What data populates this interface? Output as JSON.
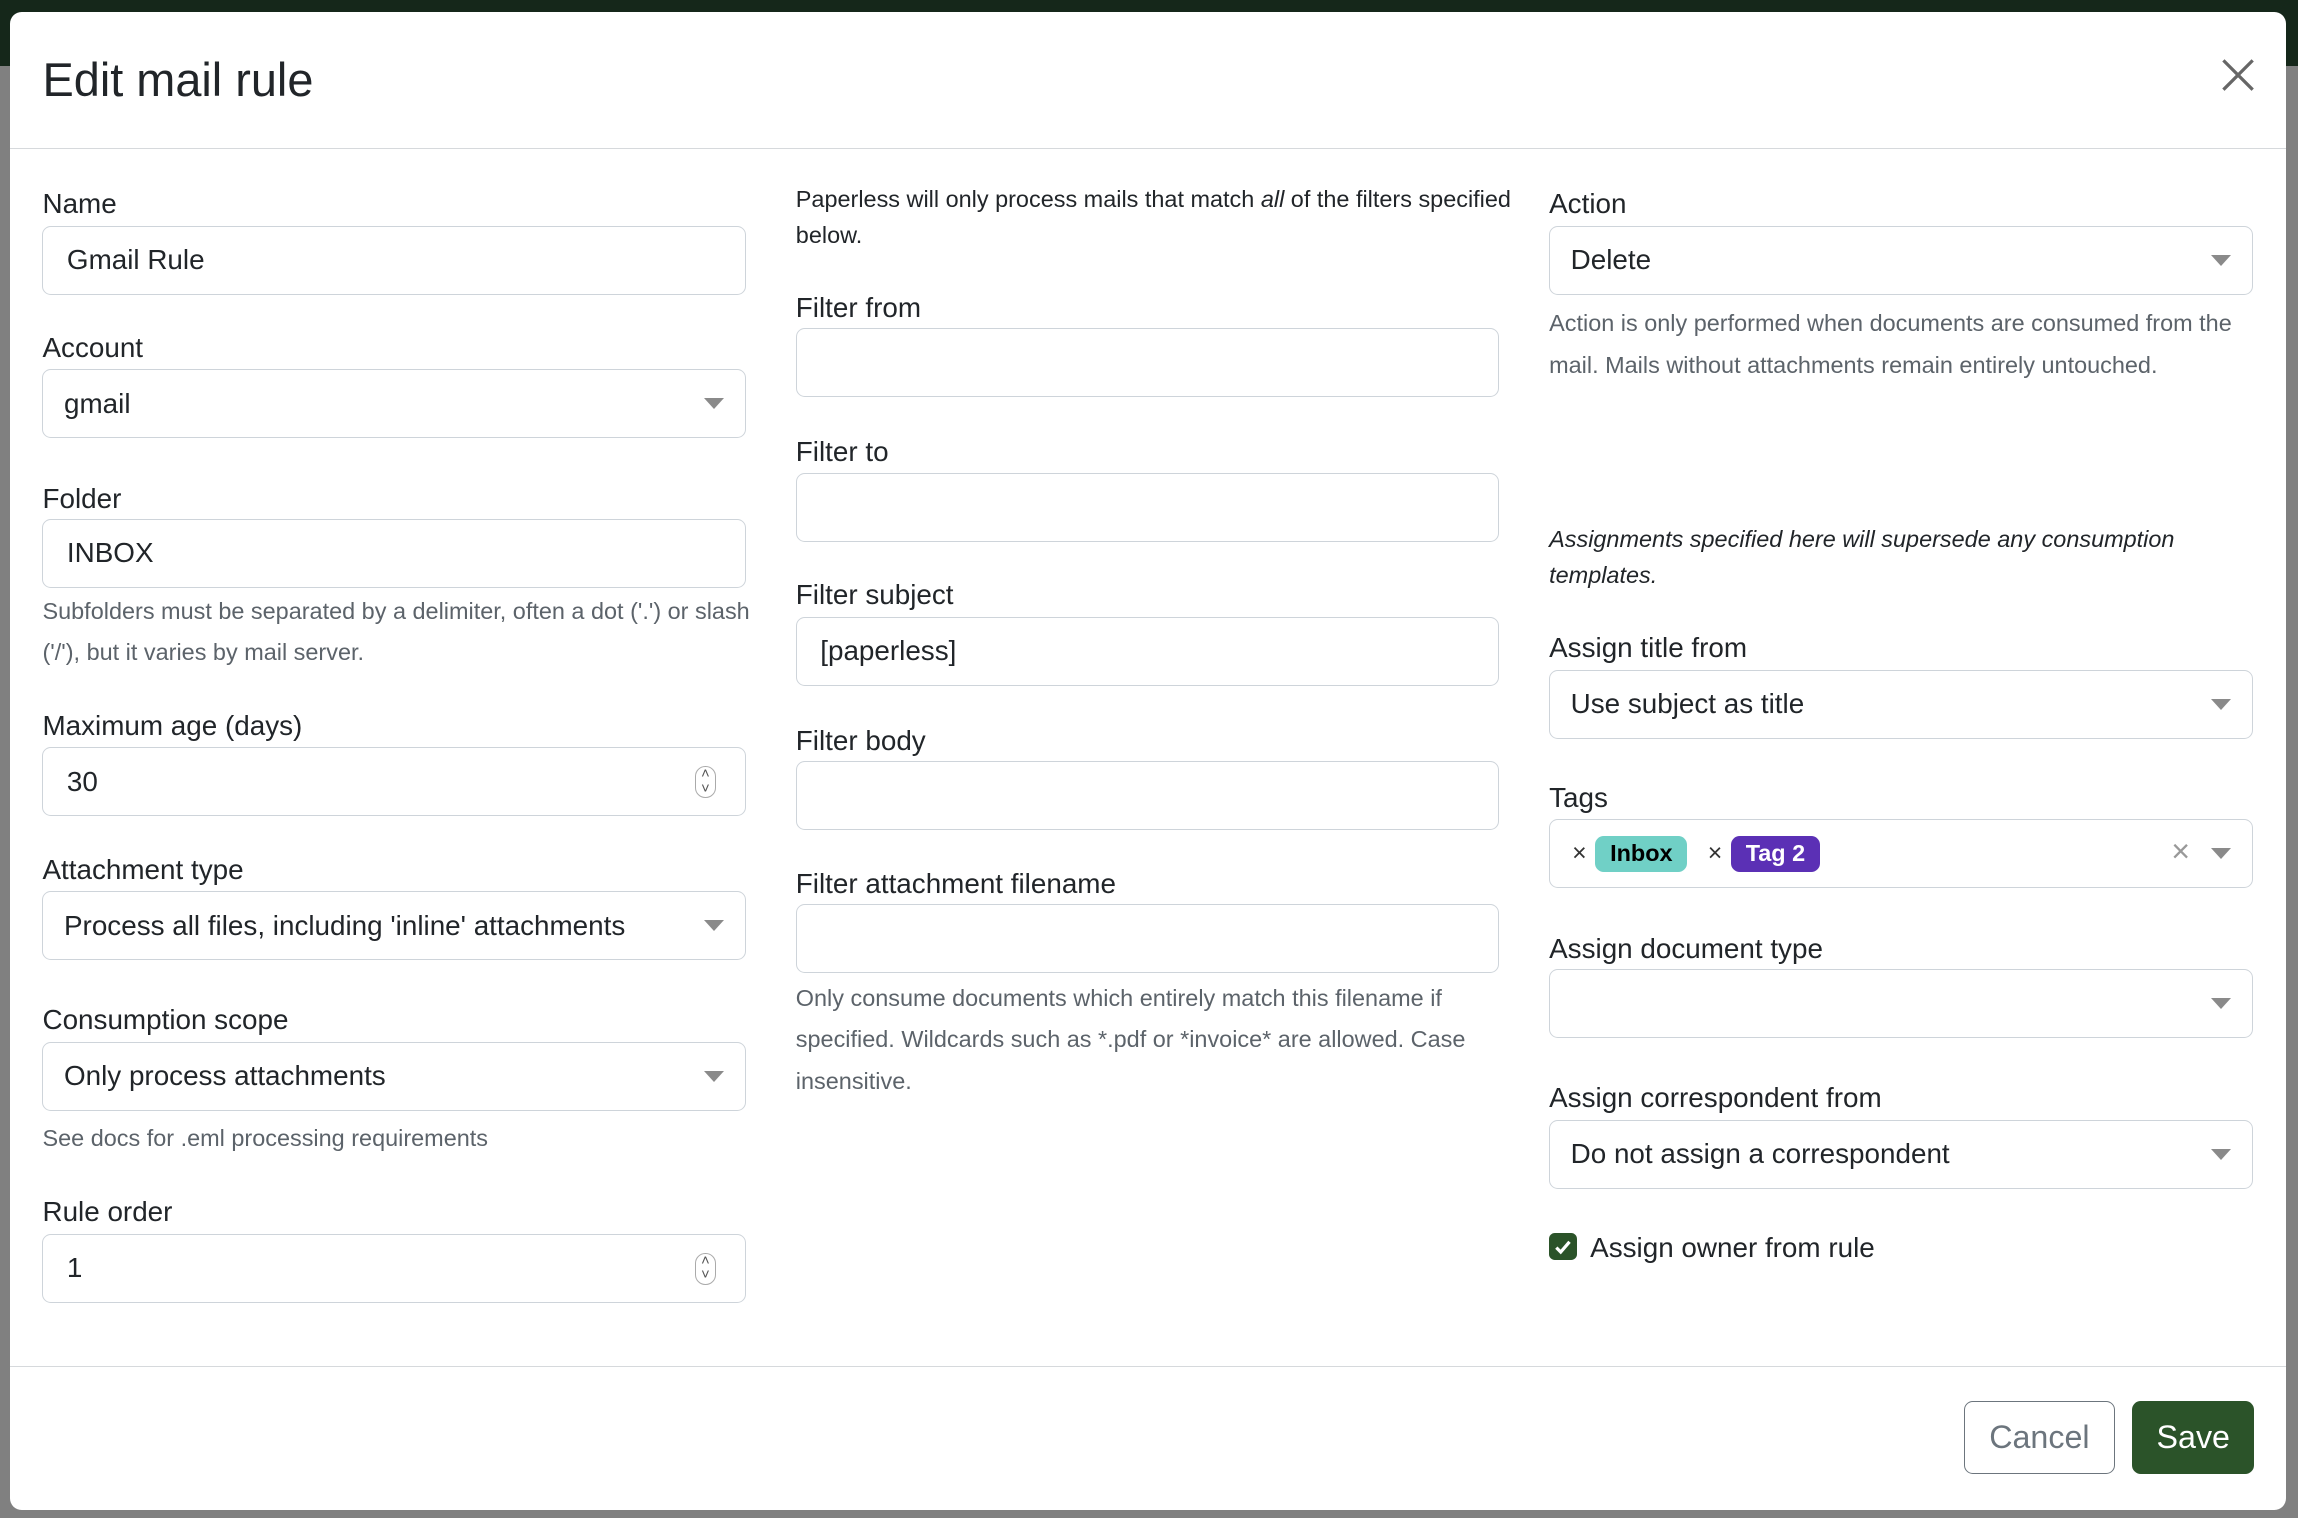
{
  "modal": {
    "title": "Edit mail rule"
  },
  "left": {
    "name": {
      "label": "Name",
      "value": "Gmail Rule"
    },
    "account": {
      "label": "Account",
      "value": "gmail"
    },
    "folder": {
      "label": "Folder",
      "value": "INBOX",
      "help": "Subfolders must be separated by a delimiter, often a dot ('.') or slash ('/'), but it varies by mail server."
    },
    "max_age": {
      "label": "Maximum age (days)",
      "value": "30"
    },
    "attachment_type": {
      "label": "Attachment type",
      "value": "Process all files, including 'inline' attachments"
    },
    "consumption_scope": {
      "label": "Consumption scope",
      "value": "Only process attachments",
      "help": "See docs for .eml processing requirements"
    },
    "rule_order": {
      "label": "Rule order",
      "value": "1"
    }
  },
  "middle": {
    "intro_a": "Paperless will only process mails that match ",
    "intro_em": "all",
    "intro_b": " of the filters specified below.",
    "filter_from": {
      "label": "Filter from",
      "value": ""
    },
    "filter_to": {
      "label": "Filter to",
      "value": ""
    },
    "filter_subject": {
      "label": "Filter subject",
      "value": "[paperless]"
    },
    "filter_body": {
      "label": "Filter body",
      "value": ""
    },
    "filter_attachment": {
      "label": "Filter attachment filename",
      "value": "",
      "help": "Only consume documents which entirely match this filename if specified. Wildcards such as *.pdf or *invoice* are allowed. Case insensitive."
    }
  },
  "right": {
    "action": {
      "label": "Action",
      "value": "Delete",
      "help": "Action is only performed when documents are consumed from the mail. Mails without attachments remain entirely untouched."
    },
    "note": "Assignments specified here will supersede any consumption templates.",
    "assign_title": {
      "label": "Assign title from",
      "value": "Use subject as title"
    },
    "tags": {
      "label": "Tags",
      "items": [
        {
          "label": "Inbox",
          "color": "#70d0c6",
          "text_color": "#000000"
        },
        {
          "label": "Tag 2",
          "color": "#5b30b5",
          "text_color": "#ffffff"
        }
      ]
    },
    "doc_type": {
      "label": "Assign document type",
      "value": ""
    },
    "correspondent": {
      "label": "Assign correspondent from",
      "value": "Do not assign a correspondent"
    },
    "owner": {
      "label": "Assign owner from rule",
      "checked": true
    }
  },
  "footer": {
    "cancel": "Cancel",
    "save": "Save"
  },
  "colors": {
    "primary": "#2b5329",
    "backdrop_bar": "#15271a"
  }
}
